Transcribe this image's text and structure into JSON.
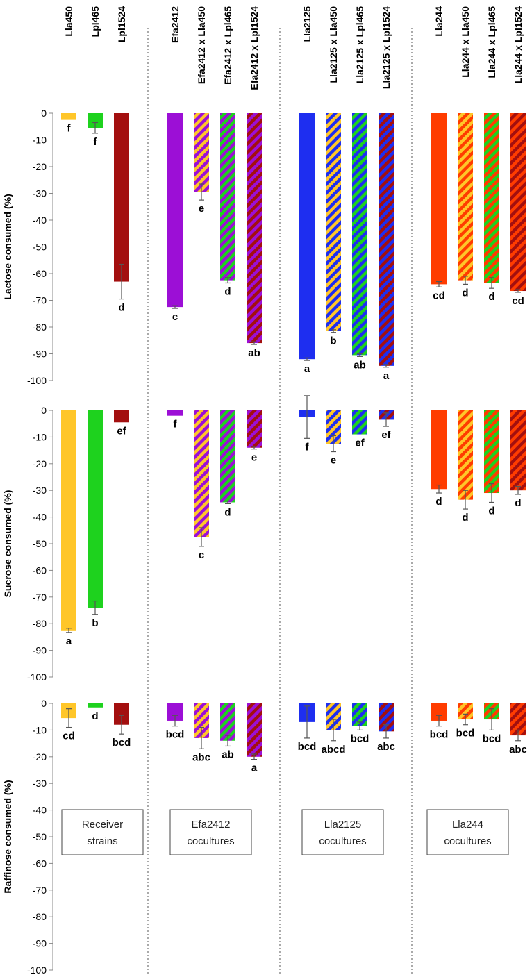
{
  "colors": {
    "Lla450": "#ffc629",
    "Lpl465": "#1ed21e",
    "Lpl1524": "#a30f0f",
    "Efa2412": "#9c0fd6",
    "Lla2125": "#1e2ef0",
    "Lla244": "#ff3c00",
    "hatch_Lla450": "#ffc629",
    "hatch_Lpl465": "#1ed21e",
    "hatch_Lpl1524": "#a30f0f",
    "error_bar": "#555555",
    "divider": "#555555"
  },
  "chart_data": {
    "type": "bar",
    "categories": [
      {
        "id": "c0",
        "label": "Lla450",
        "group": 0,
        "base": "Lla450",
        "hatch": null
      },
      {
        "id": "c1",
        "label": "Lpl465",
        "group": 0,
        "base": "Lpl465",
        "hatch": null
      },
      {
        "id": "c2",
        "label": "Lpl1524",
        "group": 0,
        "base": "Lpl1524",
        "hatch": null
      },
      {
        "id": "c3",
        "label": "Efa2412",
        "group": 1,
        "base": "Efa2412",
        "hatch": null
      },
      {
        "id": "c4",
        "label": "Efa2412 x Lla450",
        "group": 1,
        "base": "Efa2412",
        "hatch": "hatch_Lla450"
      },
      {
        "id": "c5",
        "label": "Efa2412 x Lpl465",
        "group": 1,
        "base": "Efa2412",
        "hatch": "hatch_Lpl465"
      },
      {
        "id": "c6",
        "label": "Efa2412 x Lpl1524",
        "group": 1,
        "base": "Efa2412",
        "hatch": "hatch_Lpl1524"
      },
      {
        "id": "c7",
        "label": "Lla2125",
        "group": 2,
        "base": "Lla2125",
        "hatch": null
      },
      {
        "id": "c8",
        "label": "Lla2125 x Lla450",
        "group": 2,
        "base": "Lla2125",
        "hatch": "hatch_Lla450"
      },
      {
        "id": "c9",
        "label": "Lla2125 x Lpl465",
        "group": 2,
        "base": "Lla2125",
        "hatch": "hatch_Lpl465"
      },
      {
        "id": "c10",
        "label": "Lla2125 x Lpl1524",
        "group": 2,
        "base": "Lla2125",
        "hatch": "hatch_Lpl1524"
      },
      {
        "id": "c11",
        "label": "Lla244",
        "group": 3,
        "base": "Lla244",
        "hatch": null
      },
      {
        "id": "c12",
        "label": "Lla244 x Lla450",
        "group": 3,
        "base": "Lla244",
        "hatch": "hatch_Lla450"
      },
      {
        "id": "c13",
        "label": "Lla244 x Lpl465",
        "group": 3,
        "base": "Lla244",
        "hatch": "hatch_Lpl465"
      },
      {
        "id": "c14",
        "label": "Lla244 x Lpl1524",
        "group": 3,
        "base": "Lla244",
        "hatch": "hatch_Lpl1524"
      }
    ],
    "groups": [
      {
        "line1": "Receiver",
        "line2": "strains"
      },
      {
        "line1": "Efa2412",
        "line2": "cocultures"
      },
      {
        "line1": "Lla2125",
        "line2": "cocultures"
      },
      {
        "line1": "Lla244",
        "line2": "cocultures"
      }
    ],
    "panels": [
      {
        "id": "lactose",
        "ylabel": "Lactose consumed (%)",
        "ylim": [
          -100,
          0
        ],
        "ticks": [
          0,
          -10,
          -20,
          -30,
          -40,
          -50,
          -60,
          -70,
          -80,
          -90,
          -100
        ],
        "values": [
          -2.5,
          -5.5,
          -63,
          -72.5,
          -29.5,
          -62.5,
          -86,
          -92,
          -81.5,
          -90.5,
          -94.5,
          -64,
          -62.5,
          -63.5,
          -66.5
        ],
        "errors": [
          0,
          2,
          6.5,
          0.5,
          3,
          1,
          0.5,
          0.5,
          0.5,
          0.5,
          0.5,
          1,
          1.5,
          2,
          0.5
        ],
        "letters": [
          "f",
          "f",
          "d",
          "c",
          "e",
          "d",
          "ab",
          "a",
          "b",
          "ab",
          "a",
          "cd",
          "d",
          "d",
          "cd"
        ]
      },
      {
        "id": "sucrose",
        "ylabel": "Sucrose consumed (%)",
        "ylim": [
          -100,
          0
        ],
        "ticks": [
          0,
          -10,
          -20,
          -30,
          -40,
          -50,
          -60,
          -70,
          -80,
          -90,
          -100
        ],
        "values": [
          -82.5,
          -74,
          -4.5,
          -2,
          -47.5,
          -34.5,
          -14,
          -2.5,
          -12.5,
          -9,
          -3.5,
          -29.5,
          -33.5,
          -31,
          -30
        ],
        "errors": [
          0.8,
          2.5,
          0,
          0,
          3.5,
          0.5,
          0.5,
          8,
          3,
          0,
          2.5,
          1.5,
          3.5,
          3.5,
          1.5
        ],
        "letters": [
          "a",
          "b",
          "ef",
          "f",
          "c",
          "d",
          "e",
          "f",
          "e",
          "ef",
          "ef",
          "d",
          "d",
          "d",
          "d"
        ]
      },
      {
        "id": "raffinose",
        "ylabel": "Raffinose consumed (%)",
        "ylim": [
          -100,
          0
        ],
        "ticks": [
          0,
          -10,
          -20,
          -30,
          -40,
          -50,
          -60,
          -70,
          -80,
          -90,
          -100
        ],
        "values": [
          -5.5,
          -1.5,
          -8,
          -6.5,
          -13,
          -14,
          -20,
          -7,
          -10,
          -8.5,
          -10.5,
          -6.5,
          -6,
          -6,
          -12
        ],
        "errors": [
          3.5,
          0,
          3.5,
          2,
          4,
          2,
          1,
          6,
          4,
          1.5,
          2.5,
          2,
          2,
          4,
          2
        ],
        "letters": [
          "cd",
          "d",
          "bcd",
          "bcd",
          "abc",
          "ab",
          "a",
          "bcd",
          "abcd",
          "bcd",
          "abc",
          "bcd",
          "bcd",
          "bcd",
          "abc"
        ]
      }
    ]
  }
}
